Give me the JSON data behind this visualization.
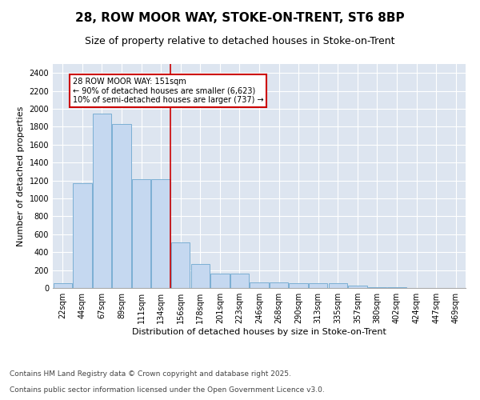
{
  "title_line1": "28, ROW MOOR WAY, STOKE-ON-TRENT, ST6 8BP",
  "title_line2": "Size of property relative to detached houses in Stoke-on-Trent",
  "xlabel": "Distribution of detached houses by size in Stoke-on-Trent",
  "ylabel": "Number of detached properties",
  "categories": [
    "22sqm",
    "44sqm",
    "67sqm",
    "89sqm",
    "111sqm",
    "134sqm",
    "156sqm",
    "178sqm",
    "201sqm",
    "223sqm",
    "246sqm",
    "268sqm",
    "290sqm",
    "313sqm",
    "335sqm",
    "357sqm",
    "380sqm",
    "402sqm",
    "424sqm",
    "447sqm",
    "469sqm"
  ],
  "values": [
    50,
    1170,
    1950,
    1830,
    1210,
    1210,
    510,
    265,
    165,
    165,
    65,
    65,
    50,
    50,
    50,
    30,
    10,
    5,
    3,
    2,
    2
  ],
  "bar_color": "#c5d8f0",
  "bar_edge_color": "#7bafd4",
  "vline_index": 6,
  "vline_color": "#cc0000",
  "annotation_text": "28 ROW MOOR WAY: 151sqm\n← 90% of detached houses are smaller (6,623)\n10% of semi-detached houses are larger (737) →",
  "annotation_box_color": "#cc0000",
  "background_color": "#dde5f0",
  "grid_color": "#c0cde0",
  "ylim": [
    0,
    2500
  ],
  "yticks": [
    0,
    200,
    400,
    600,
    800,
    1000,
    1200,
    1400,
    1600,
    1800,
    2000,
    2200,
    2400
  ],
  "footer_line1": "Contains HM Land Registry data © Crown copyright and database right 2025.",
  "footer_line2": "Contains public sector information licensed under the Open Government Licence v3.0.",
  "title_fontsize": 11,
  "subtitle_fontsize": 9,
  "axis_label_fontsize": 8,
  "tick_fontsize": 7,
  "footer_fontsize": 6.5,
  "ann_fontsize": 7
}
